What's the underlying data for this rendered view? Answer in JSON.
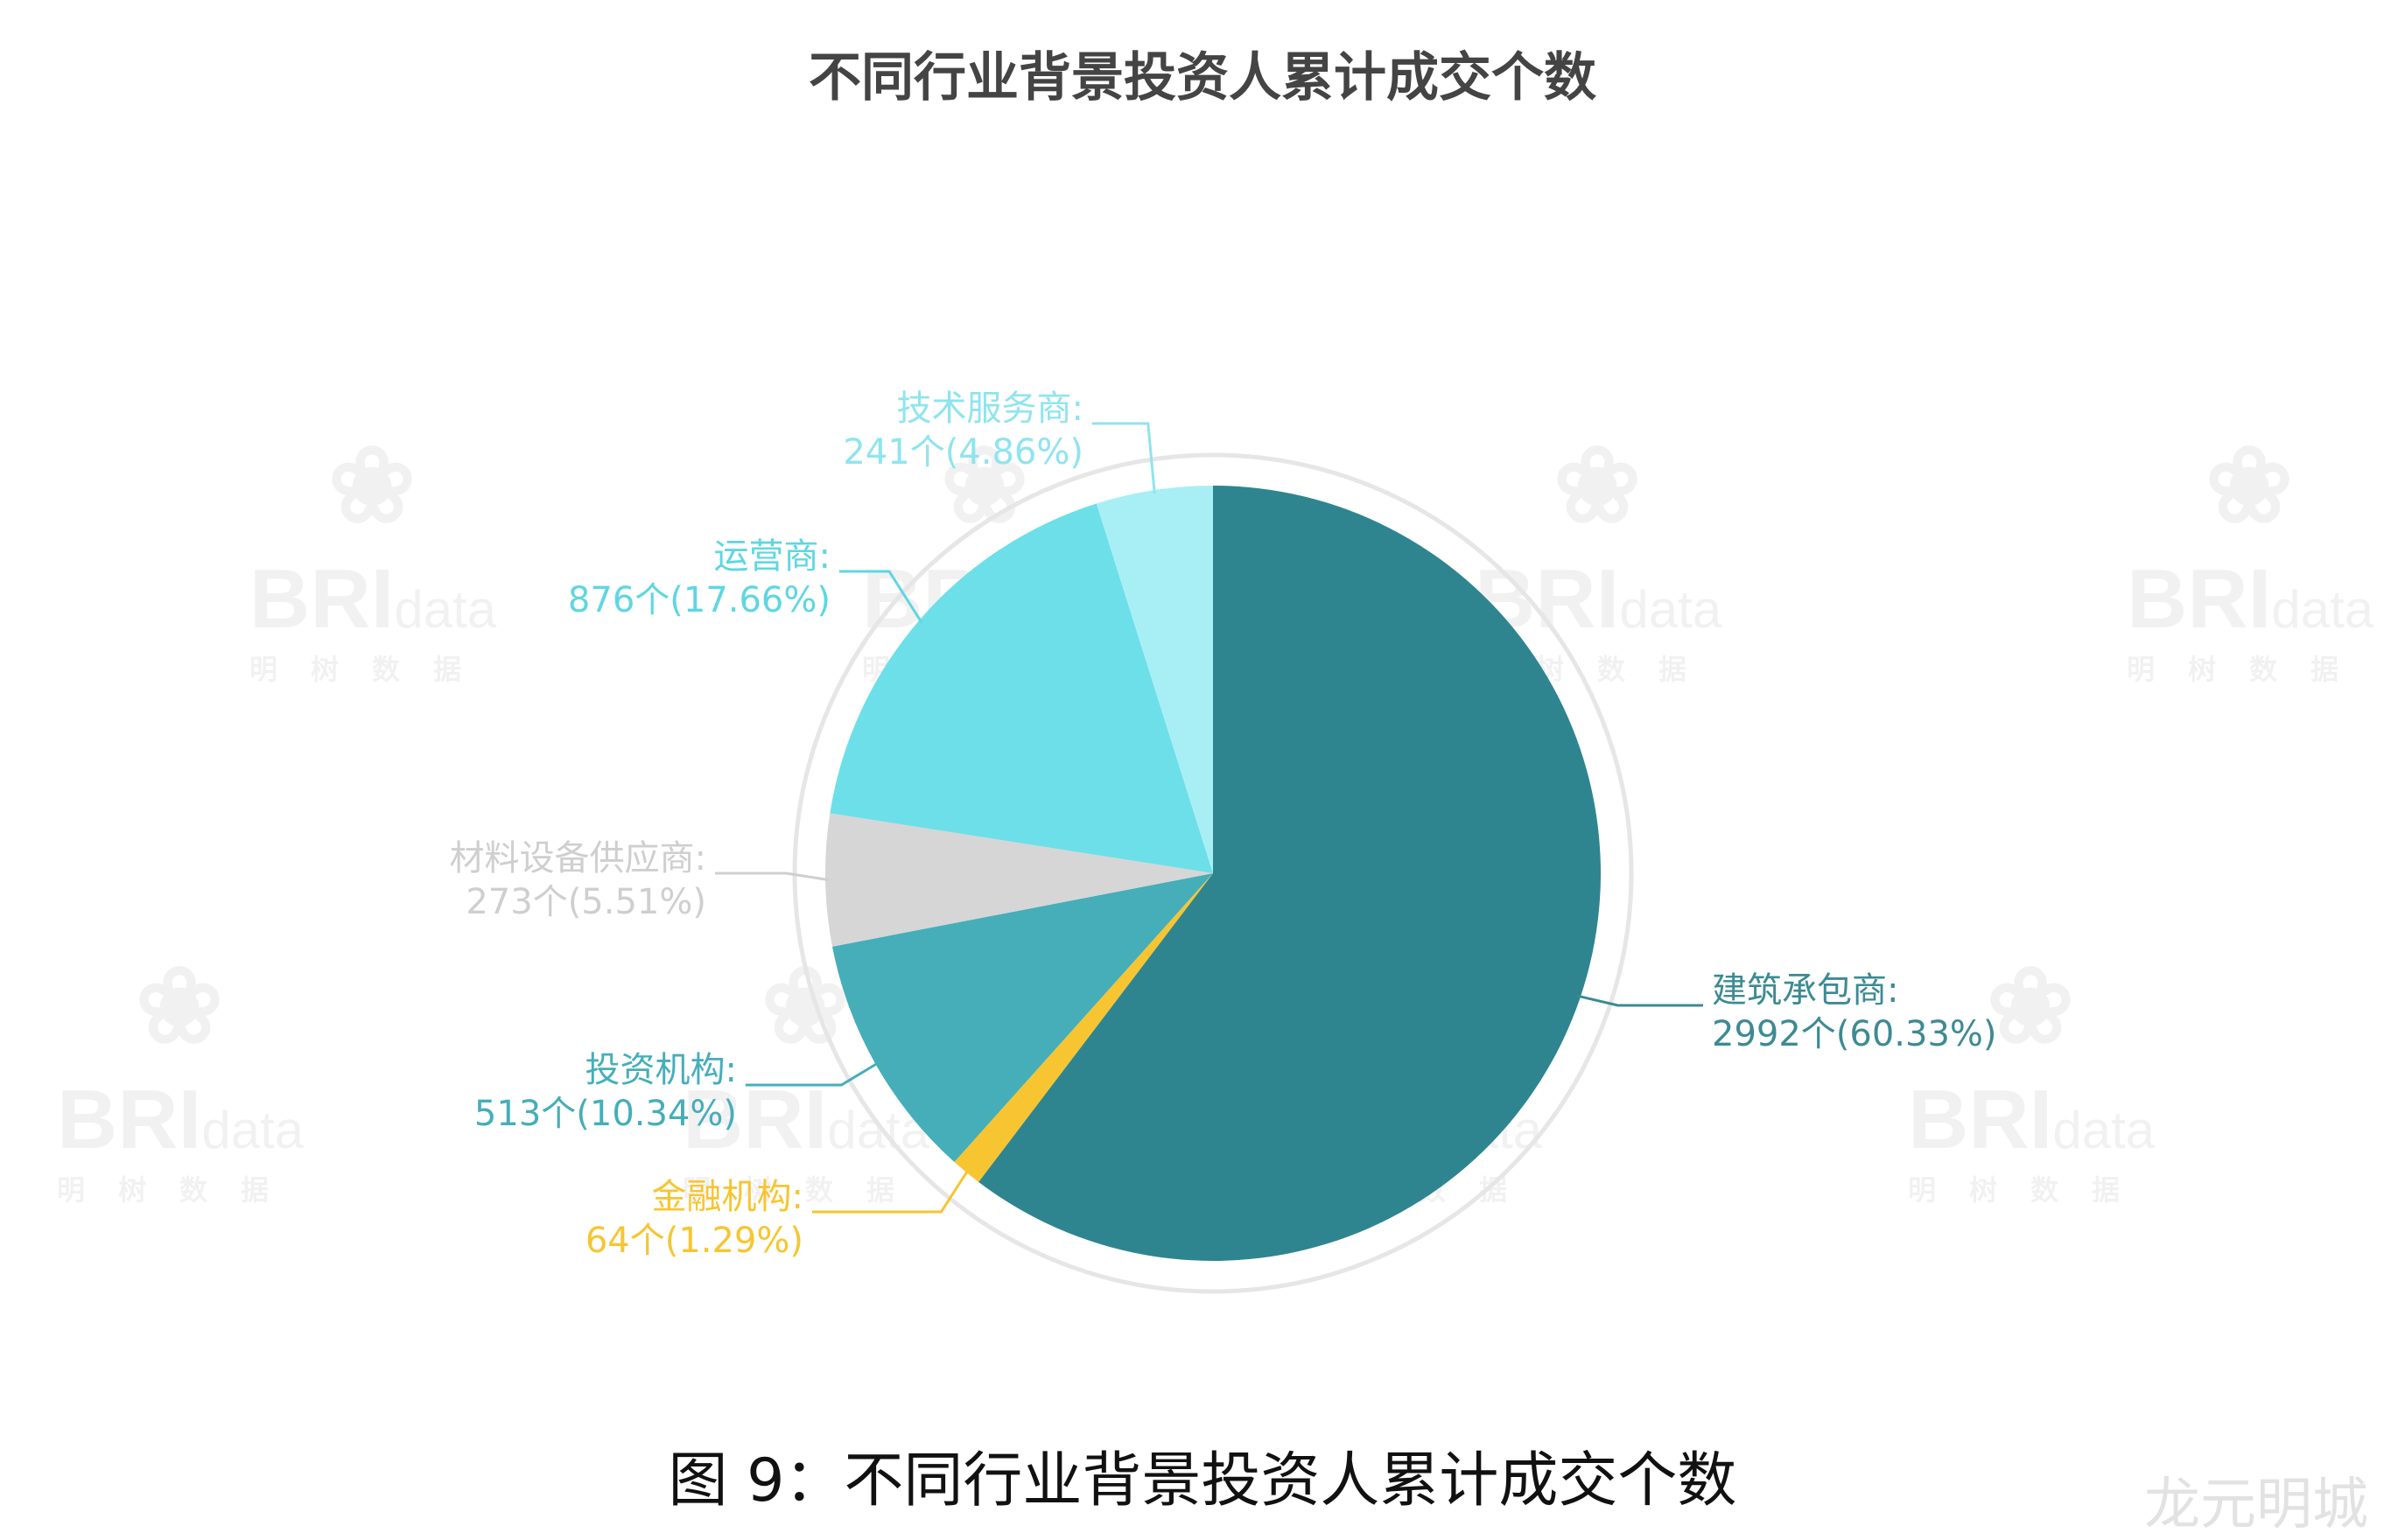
{
  "chart_data": {
    "type": "pie",
    "title": "不同行业背景投资人累计成交个数",
    "unit": "个",
    "start_angle": "12 o'clock",
    "direction": "clockwise",
    "slices": [
      {
        "label": "建筑承包商",
        "value": 2992,
        "percent": 60.33,
        "color": "#2e8590"
      },
      {
        "label": "金融机构",
        "value": 64,
        "percent": 1.29,
        "color": "#f7c531"
      },
      {
        "label": "投资机构",
        "value": 513,
        "percent": 10.34,
        "color": "#45aeb9"
      },
      {
        "label": "材料设备供应商",
        "value": 273,
        "percent": 5.51,
        "color": "#d6d6d6"
      },
      {
        "label": "运营商",
        "value": 876,
        "percent": 17.66,
        "color": "#6ddfe9"
      },
      {
        "label": "技术服务商",
        "value": 241,
        "percent": 4.86,
        "color": "#a8eff5"
      }
    ],
    "data_labels": [
      {
        "name": "建筑承包商:",
        "detail": "2992个(60.33%)"
      },
      {
        "name": "金融机构:",
        "detail": "64个(1.29%)"
      },
      {
        "name": "投资机构:",
        "detail": "513个(10.34%)"
      },
      {
        "name": "材料设备供应商:",
        "detail": "273个(5.51%)"
      },
      {
        "name": "运营商:",
        "detail": "876个(17.66%)"
      },
      {
        "name": "技术服务商:",
        "detail": "241个(4.86%)"
      }
    ]
  },
  "caption": "图 9：不同行业背景投资人累计成交个数",
  "watermark": {
    "brand": "BRI",
    "brand_suffix": "data",
    "brand_cn": "明树数据",
    "corner": "龙元明城"
  }
}
